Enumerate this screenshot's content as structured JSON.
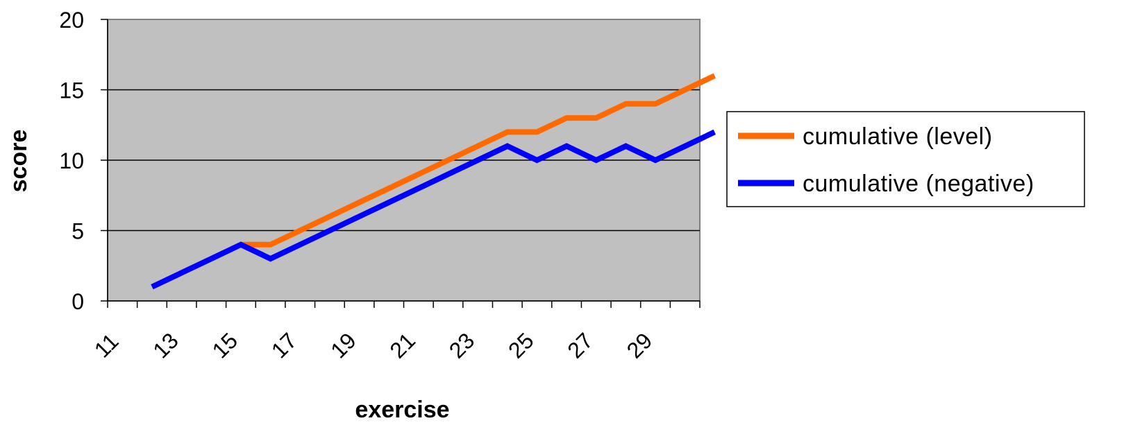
{
  "chart_data": {
    "type": "line",
    "xlabel": "exercise",
    "ylabel": "score",
    "x": [
      12,
      13,
      14,
      15,
      16,
      17,
      18,
      19,
      20,
      21,
      22,
      23,
      24,
      25,
      26,
      27,
      28,
      29,
      30,
      31
    ],
    "x_tick_labels": [
      "11",
      "13",
      "15",
      "17",
      "19",
      "21",
      "23",
      "25",
      "27",
      "29"
    ],
    "y_ticks": [
      0,
      5,
      10,
      15,
      20
    ],
    "ylim": [
      0,
      20
    ],
    "grid": "horizontal",
    "legend_position": "right",
    "series": [
      {
        "name": "cumulative (level)",
        "color": "#ff6a00",
        "values": [
          null,
          null,
          null,
          4,
          4,
          5,
          6,
          7,
          8,
          9,
          10,
          11,
          12,
          12,
          13,
          13,
          14,
          14,
          15,
          16
        ]
      },
      {
        "name": "cumulative (negative)",
        "color": "#0000ff",
        "values": [
          1,
          2,
          3,
          4,
          3,
          4,
          5,
          6,
          7,
          8,
          9,
          10,
          11,
          10,
          11,
          10,
          11,
          10,
          11,
          12
        ]
      }
    ],
    "plot_background": "#c0c0c0"
  }
}
